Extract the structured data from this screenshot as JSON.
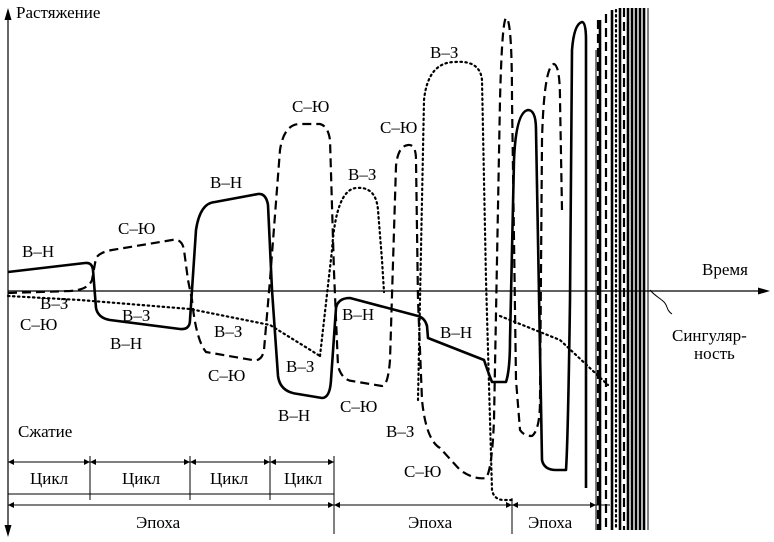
{
  "axes": {
    "y_top": "Растяжение",
    "y_bottom": "Сжатие",
    "x": "Время"
  },
  "singularity": {
    "line1": "Сингуляр-",
    "line2": "ность"
  },
  "curve_labels": {
    "bn_1": "В–Н",
    "bz_1": "В–З",
    "syu_1": "С–Ю",
    "syu_2": "С–Ю",
    "bz_2": "В–З",
    "bn_2": "В–Н",
    "bn_3": "В–Н",
    "bz_3": "В–З",
    "syu_3": "С–Ю",
    "syu_4": "С–Ю",
    "bz_4": "В–З",
    "bn_4": "В–Н",
    "bz_5": "В–З",
    "bn_5": "В–Н",
    "syu_5": "С–Ю",
    "syu_6": "С–Ю",
    "bz_6": "В–З",
    "bz_7": "В–З",
    "bn_6": "В–Н",
    "syu_7": "С–Ю"
  },
  "cycles": [
    "Цикл",
    "Цикл",
    "Цикл",
    "Цикл"
  ],
  "epochs": [
    "Эпоха",
    "Эпоха",
    "Эпоха"
  ]
}
